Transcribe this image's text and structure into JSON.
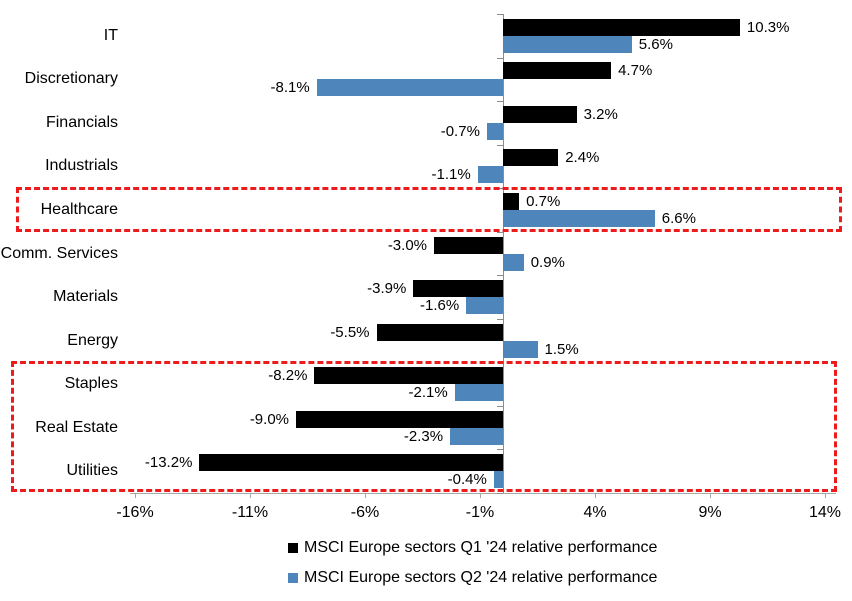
{
  "chart_data": {
    "type": "bar",
    "orientation": "horizontal",
    "title": "",
    "categories": [
      "IT",
      "Discretionary",
      "Financials",
      "Industrials",
      "Healthcare",
      "Comm. Services",
      "Materials",
      "Energy",
      "Staples",
      "Real Estate",
      "Utilities"
    ],
    "series": [
      {
        "name": "MSCI Europe sectors Q1 '24 relative performance",
        "color": "#000000",
        "values": [
          10.3,
          4.7,
          3.2,
          2.4,
          0.7,
          -3.0,
          -3.9,
          -5.5,
          -8.2,
          -9.0,
          -13.2
        ],
        "labels": [
          "10.3%",
          "4.7%",
          "3.2%",
          "2.4%",
          "0.7%",
          "-3.0%",
          "-3.9%",
          "-5.5%",
          "-8.2%",
          "-9.0%",
          "-13.2%"
        ]
      },
      {
        "name": "MSCI Europe sectors Q2 '24 relative performance",
        "color": "#4e86bc",
        "values": [
          5.6,
          -8.1,
          -0.7,
          -1.1,
          6.6,
          0.9,
          -1.6,
          1.5,
          -2.1,
          -2.3,
          -0.4
        ],
        "labels": [
          "5.6%",
          "-8.1%",
          "-0.7%",
          "-1.1%",
          "6.6%",
          "0.9%",
          "-1.6%",
          "1.5%",
          "-2.1%",
          "-2.3%",
          "-0.4%"
        ]
      }
    ],
    "x_tick_labels": [
      "-16%",
      "-11%",
      "-6%",
      "-1%",
      "4%",
      "9%",
      "14%"
    ],
    "x_tick_values": [
      -16,
      -11,
      -6,
      -1,
      4,
      9,
      14
    ],
    "axis_range": [
      -16.2,
      14.5
    ],
    "grid": false,
    "legend_position": "bottom",
    "value_label_unit": "%",
    "highlight_color": "#ec1c1c",
    "highlight_boxes": [
      {
        "categories": [
          "Healthcare"
        ]
      },
      {
        "categories": [
          "Staples",
          "Real Estate",
          "Utilities"
        ]
      }
    ]
  }
}
